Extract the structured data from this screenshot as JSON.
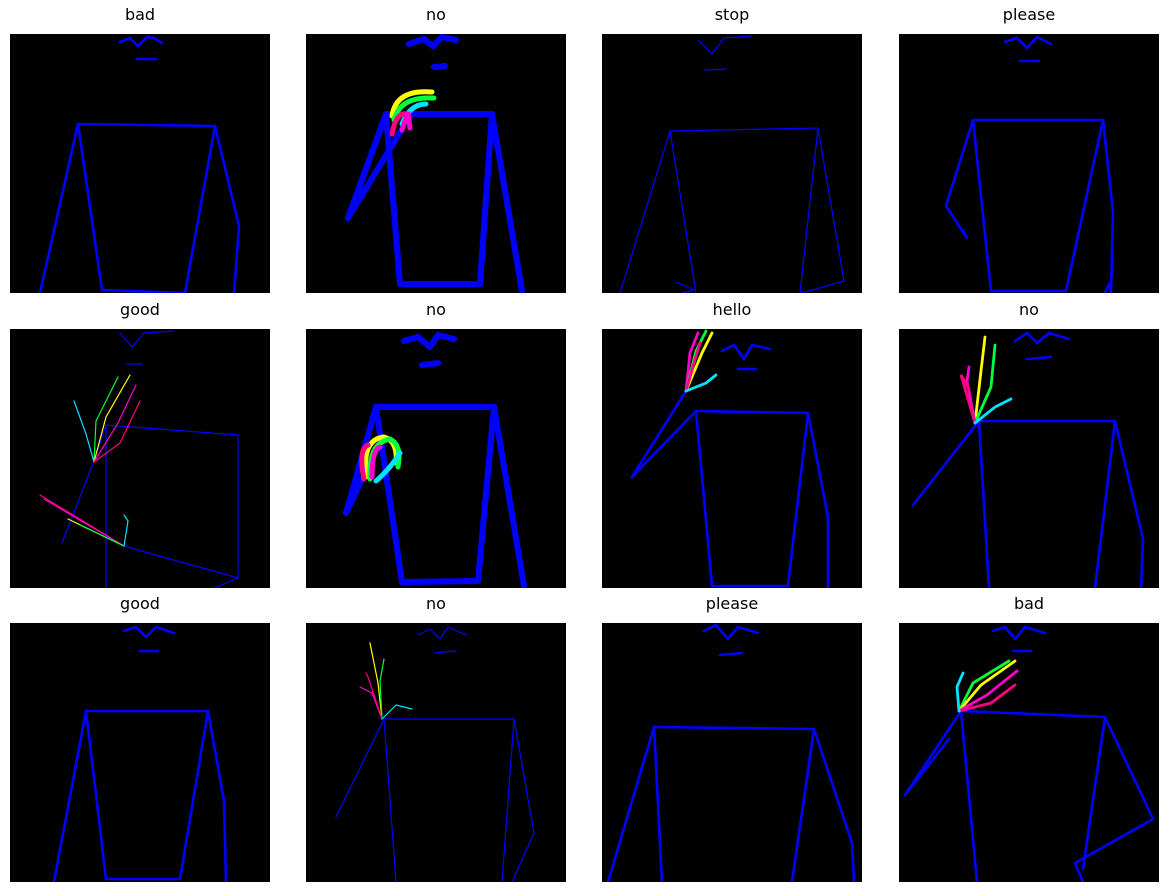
{
  "figure": {
    "background_color": "#000000",
    "panels": [
      {
        "label": "bad"
      },
      {
        "label": "no"
      },
      {
        "label": "stop"
      },
      {
        "label": "please"
      },
      {
        "label": "good"
      },
      {
        "label": "no"
      },
      {
        "label": "hello"
      },
      {
        "label": "no"
      },
      {
        "label": "good"
      },
      {
        "label": "no"
      },
      {
        "label": "please"
      },
      {
        "label": "bad"
      }
    ]
  },
  "colors": {
    "skeleton": "#0000ff",
    "finger_1": "#00e5ff",
    "finger_2": "#00ff3c",
    "finger_3": "#ffff00",
    "finger_4": "#ff00cc",
    "finger_5": "#ff0080"
  }
}
